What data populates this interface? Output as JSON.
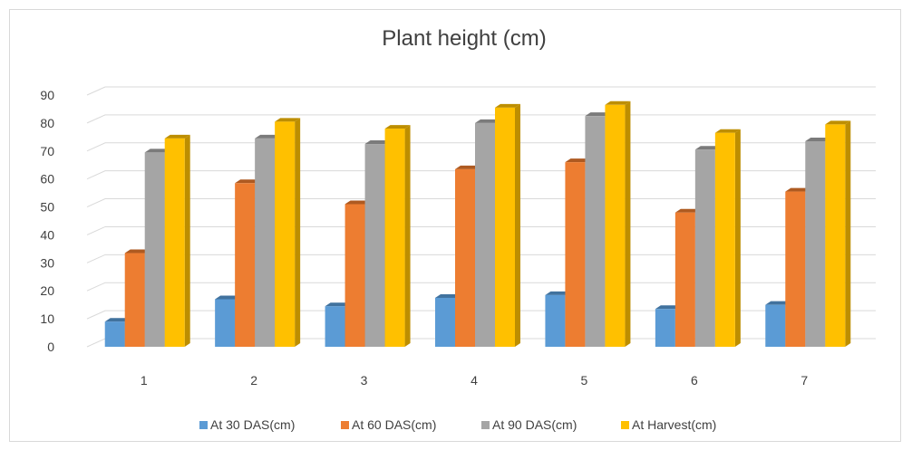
{
  "chart_data": {
    "type": "bar",
    "title": "Plant height (cm)",
    "categories": [
      "1",
      "2",
      "3",
      "4",
      "5",
      "6",
      "7"
    ],
    "series": [
      {
        "name": "At 30 DAS(cm)",
        "color": "#5b9bd5",
        "side": "#41729e",
        "values": [
          9,
          17,
          14.5,
          17.5,
          18.5,
          13.5,
          15
        ]
      },
      {
        "name": "At 60 DAS(cm)",
        "color": "#ed7d31",
        "side": "#ae5a21",
        "values": [
          33.5,
          58.5,
          51,
          63.5,
          66,
          48,
          55.5
        ]
      },
      {
        "name": "At 90 DAS(cm)",
        "color": "#a5a5a5",
        "side": "#7b7b7b",
        "values": [
          69.5,
          74.5,
          72.5,
          80,
          82.5,
          70.5,
          73.5
        ]
      },
      {
        "name": "At Harvest(cm)",
        "color": "#ffc000",
        "side": "#bd8e00",
        "values": [
          74.5,
          80.5,
          78,
          85.5,
          86.5,
          76.5,
          79.5
        ]
      }
    ],
    "ylim": [
      0,
      90
    ],
    "yticks": [
      "0",
      "10",
      "20",
      "30",
      "40",
      "50",
      "60",
      "70",
      "80",
      "90"
    ],
    "grid": true,
    "legend_position": "bottom"
  }
}
